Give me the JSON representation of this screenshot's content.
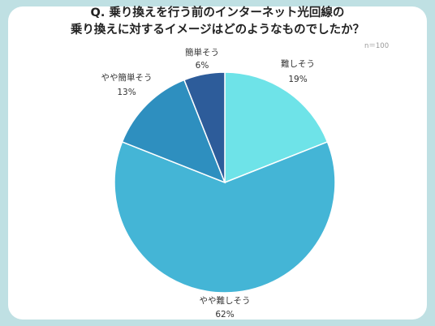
{
  "title_lines": [
    "Q. 乗り換えを行う前のインターネット光回線の",
    "乗り換えに対するイメージはどのようなものでしたか？"
  ],
  "sample_note": "n＝100",
  "chart_data": {
    "type": "pie",
    "title": "Q. 乗り換えを行う前のインターネット光回線の乗り換えに対するイメージはどのようなものでしたか？",
    "slices": [
      {
        "label": "難しそう",
        "value": 19,
        "pct_label": "19%",
        "color": "#6ee3e8"
      },
      {
        "label": "やや難しそう",
        "value": 62,
        "pct_label": "62%",
        "color": "#44b5d6"
      },
      {
        "label": "やや簡単そう",
        "value": 13,
        "pct_label": "13%",
        "color": "#2e8fbf"
      },
      {
        "label": "簡単そう",
        "value": 6,
        "pct_label": "6%",
        "color": "#2d5c9a"
      }
    ],
    "start": "12 o'clock",
    "direction": "clockwise",
    "legend": "none"
  }
}
